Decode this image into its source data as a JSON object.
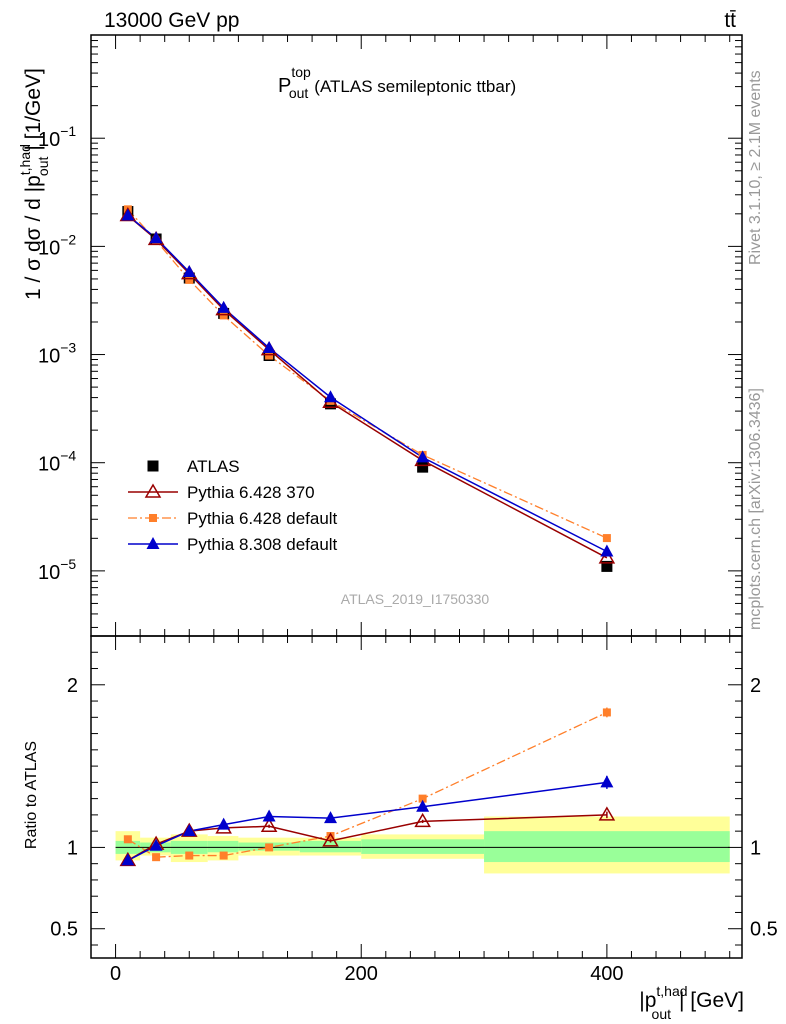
{
  "header": {
    "left": "13000 GeV pp",
    "right": "tt̄"
  },
  "plot_title": {
    "base": "P",
    "sup": "top",
    "sub": "out",
    "rest": "(ATLAS semileptonic ttbar)"
  },
  "side_text": {
    "rivet": "Rivet 3.1.10, ≥ 2.1M events",
    "mcplots": "mcplots.cern.ch [arXiv:1306.3436]"
  },
  "analysis_id": "ATLAS_2019_I1750330",
  "colors": {
    "atlas": "#000000",
    "py6_370": "#990000",
    "py6_default": "#ff7f2a",
    "py8": "#0000cc",
    "band_inner": "#99ff99",
    "band_outer": "#ffff99"
  },
  "chart_data": [
    {
      "type": "line",
      "panel": "main",
      "yscale": "log",
      "ylim": [
        2.5e-06,
        0.9
      ],
      "xlim": [
        -20,
        510
      ],
      "ylabel": {
        "pre": "1 / σ dσ / d |p",
        "sup": "t,had",
        "sub": "out",
        "post": "| [1/GeV]"
      },
      "ytick_labels": [
        {
          "value": 0.1,
          "base": "10",
          "exp": "−1"
        },
        {
          "value": 0.01,
          "base": "10",
          "exp": "−2"
        },
        {
          "value": 0.001,
          "base": "10",
          "exp": "−3"
        },
        {
          "value": 0.0001,
          "base": "10",
          "exp": "−4"
        },
        {
          "value": 1e-05,
          "base": "10",
          "exp": "−5"
        }
      ],
      "legend_position": "bottom-left",
      "series": [
        {
          "key": "atlas",
          "name": "ATLAS",
          "style": "marker",
          "x": [
            10,
            33,
            60,
            88,
            125,
            175,
            250,
            400
          ],
          "y": [
            0.021,
            0.0117,
            0.0051,
            0.0024,
            0.00098,
            0.00035,
            9.1e-05,
            1.1e-05
          ]
        },
        {
          "key": "py6_370",
          "name": "Pythia 6.428 370",
          "style": "line",
          "x": [
            10,
            33,
            60,
            88,
            125,
            175,
            250,
            400
          ],
          "y": [
            0.0193,
            0.0116,
            0.0056,
            0.0026,
            0.00111,
            0.000362,
            0.000105,
            1.32e-05
          ]
        },
        {
          "key": "py6_default",
          "name": "Pythia 6.428 default",
          "style": "dashdot",
          "x": [
            10,
            33,
            60,
            88,
            125,
            175,
            250,
            400
          ],
          "y": [
            0.022,
            0.0113,
            0.0049,
            0.0023,
            0.00098,
            0.000373,
            0.000118,
            2.01e-05
          ]
        },
        {
          "key": "py8",
          "name": "Pythia 8.308 default",
          "style": "line",
          "x": [
            10,
            33,
            60,
            88,
            125,
            175,
            250,
            400
          ],
          "y": [
            0.0193,
            0.0119,
            0.0058,
            0.0027,
            0.00115,
            0.000403,
            0.000112,
            1.51e-05
          ]
        }
      ]
    },
    {
      "type": "line",
      "panel": "ratio",
      "ylim": [
        0.32,
        2.3
      ],
      "xlim": [
        -20,
        510
      ],
      "ylabel": "Ratio to ATLAS",
      "xlabel": {
        "pre": "|p",
        "sup": "t,had",
        "sub": "out",
        "post": "| [GeV]"
      },
      "ytick_labels": [
        "2",
        "1",
        "0.5"
      ],
      "ytick_values": [
        2,
        1,
        0.5
      ],
      "xtick_labels": [
        "0",
        "200",
        "400"
      ],
      "xtick_values": [
        0,
        200,
        400
      ],
      "reference_line": 1,
      "bands": [
        {
          "x0": 0,
          "x1": 20,
          "inner": [
            0.96,
            1.04
          ],
          "outer": [
            0.92,
            1.1
          ]
        },
        {
          "x0": 20,
          "x1": 45,
          "inner": [
            0.97,
            1.03
          ],
          "outer": [
            0.95,
            1.06
          ]
        },
        {
          "x0": 45,
          "x1": 75,
          "inner": [
            0.96,
            1.04
          ],
          "outer": [
            0.91,
            1.08
          ]
        },
        {
          "x0": 75,
          "x1": 100,
          "inner": [
            0.97,
            1.04
          ],
          "outer": [
            0.92,
            1.07
          ]
        },
        {
          "x0": 100,
          "x1": 150,
          "inner": [
            0.98,
            1.03
          ],
          "outer": [
            0.95,
            1.06
          ]
        },
        {
          "x0": 150,
          "x1": 200,
          "inner": [
            0.97,
            1.04
          ],
          "outer": [
            0.95,
            1.06
          ]
        },
        {
          "x0": 200,
          "x1": 300,
          "inner": [
            0.96,
            1.05
          ],
          "outer": [
            0.93,
            1.08
          ]
        },
        {
          "x0": 300,
          "x1": 500,
          "inner": [
            0.91,
            1.1
          ],
          "outer": [
            0.84,
            1.19
          ]
        }
      ],
      "series": [
        {
          "key": "py6_370",
          "name": "Pythia 6.428 370",
          "x": [
            10,
            33,
            60,
            88,
            125,
            175,
            250,
            400
          ],
          "y": [
            0.92,
            1.02,
            1.1,
            1.12,
            1.13,
            1.04,
            1.16,
            1.2
          ],
          "err": [
            0.01,
            0.01,
            0.01,
            0.01,
            0.01,
            0.01,
            0.01,
            0.02
          ]
        },
        {
          "key": "py6_default",
          "name": "Pythia 6.428 default",
          "x": [
            10,
            33,
            60,
            88,
            125,
            175,
            250,
            400
          ],
          "y": [
            1.05,
            0.94,
            0.95,
            0.95,
            1.0,
            1.07,
            1.3,
            1.83
          ],
          "err": [
            0.01,
            0.01,
            0.01,
            0.01,
            0.01,
            0.01,
            0.01,
            0.03
          ]
        },
        {
          "key": "py8",
          "name": "Pythia 8.308 default",
          "x": [
            10,
            33,
            60,
            88,
            125,
            175,
            250,
            400
          ],
          "y": [
            0.92,
            1.01,
            1.1,
            1.14,
            1.19,
            1.18,
            1.25,
            1.4
          ],
          "err": [
            0.01,
            0.01,
            0.01,
            0.01,
            0.01,
            0.01,
            0.01,
            0.04
          ]
        }
      ]
    }
  ]
}
